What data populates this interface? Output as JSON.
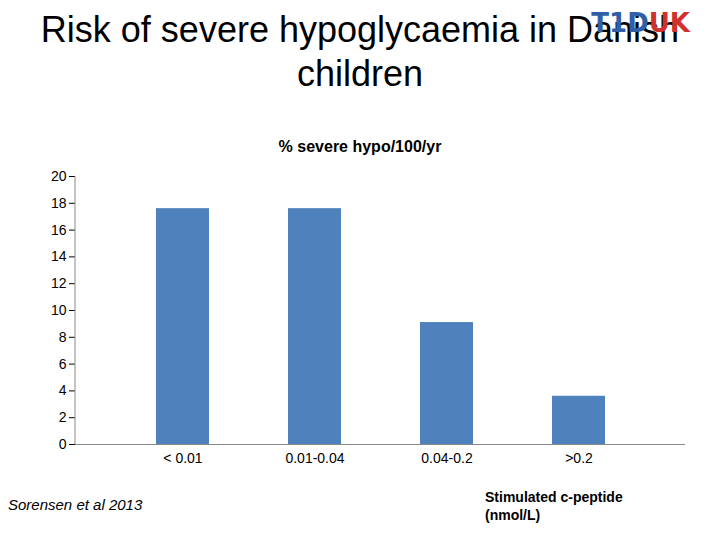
{
  "chart_data": {
    "type": "bar",
    "title": "Risk of severe hypoglycaemia in Danish children",
    "subtitle": "% severe hypo/100/yr",
    "logo": [
      "T1D",
      "UK"
    ],
    "source": "Sorensen et al 2013",
    "x_label": "Stimulated c-peptide (nmol/L)",
    "categories": [
      "< 0.01",
      "0.01-0.04",
      "0.04-0.2",
      ">0.2"
    ],
    "values": [
      17.6,
      17.6,
      9.1,
      3.6
    ],
    "color": "#4f81bd",
    "ylim": [
      0,
      20
    ],
    "yticks": [
      0,
      2,
      4,
      6,
      8,
      10,
      12,
      14,
      16,
      18,
      20
    ],
    "grid": false,
    "data_labels": false
  }
}
